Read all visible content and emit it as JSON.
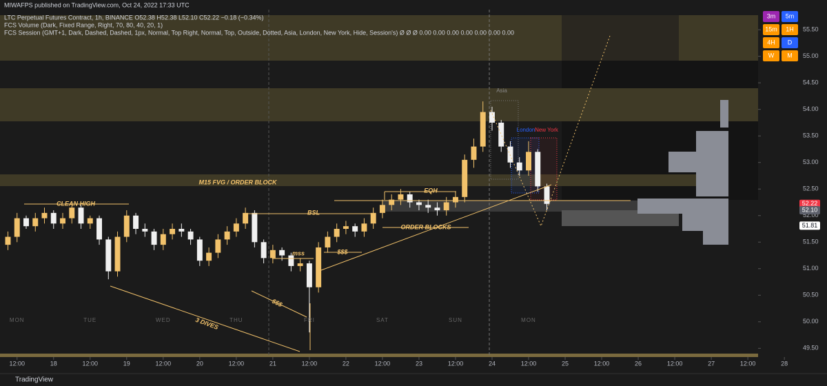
{
  "header": {
    "publisher": "MIWAFPS published on TradingView.com, Oct 24, 2022 17:33 UTC",
    "symbol_line": "LTC Perpetual Futures Contract, 1h, BINANCE  O52.38 H52.38 L52.10 C52.22 −0.18 (−0.34%)",
    "indicator_1": "FCS Volume (Dark, Fixed Range, Right, 70, 80, 40, 20, 1)",
    "indicator_2": "FCS Session (GMT+1, Dark, Dashed, Dashed, 1px, Normal, Top Right, Normal, Top, Outside, Dotted, Asia, London, New York, Hide, Session's)  Ø  Ø  Ø  0.00 0.00 0.00 0.00 0.00 0.00 0.00"
  },
  "timeframes": [
    "3m",
    "5m",
    "15m",
    "1H",
    "4H",
    "D",
    "W",
    "M"
  ],
  "footer": "TradingView",
  "chart_data": {
    "type": "candlestick",
    "up_color": "#f2c26b",
    "down_color": "#f0f0f0",
    "x": [
      -15,
      -12,
      -9,
      -6,
      -3,
      0,
      3,
      6,
      9,
      12,
      15,
      18,
      21,
      24,
      27,
      30,
      33,
      36,
      39,
      42,
      45,
      48,
      51,
      54,
      57,
      60,
      63,
      66,
      69,
      72,
      75,
      78,
      81,
      84,
      87,
      90,
      93,
      96,
      99,
      102,
      105,
      108,
      111,
      114,
      117,
      120,
      123,
      126,
      129,
      132,
      135,
      138,
      141,
      144,
      147,
      150,
      153,
      156,
      159,
      162
    ],
    "open": [
      51.45,
      51.6,
      51.95,
      51.8,
      51.95,
      52.05,
      51.85,
      51.95,
      52.15,
      51.85,
      51.95,
      51.55,
      50.95,
      51.6,
      52.0,
      51.75,
      51.7,
      51.45,
      51.65,
      51.75,
      51.7,
      51.55,
      51.15,
      51.3,
      51.55,
      51.7,
      51.85,
      52.05,
      51.5,
      51.2,
      51.35,
      51.25,
      51.05,
      51.1,
      50.65,
      51.4,
      51.6,
      51.75,
      51.8,
      51.7,
      51.85,
      52.05,
      52.2,
      52.3,
      52.4,
      52.25,
      52.2,
      52.15,
      52.1,
      52.25,
      52.35,
      53.05,
      53.3,
      53.95,
      53.75,
      53.3,
      53.0,
      52.85,
      53.2,
      52.55
    ],
    "high": [
      51.7,
      52.05,
      52.0,
      52.05,
      52.15,
      52.1,
      52.05,
      52.25,
      52.2,
      52.0,
      52.0,
      51.6,
      51.7,
      52.1,
      52.05,
      51.85,
      51.75,
      51.75,
      51.85,
      51.85,
      51.75,
      51.6,
      51.4,
      51.65,
      51.8,
      51.95,
      52.15,
      52.1,
      51.55,
      51.45,
      51.4,
      51.3,
      51.2,
      51.15,
      51.5,
      51.7,
      51.85,
      51.9,
      51.85,
      51.95,
      52.15,
      52.3,
      52.4,
      52.5,
      52.45,
      52.3,
      52.3,
      52.25,
      52.35,
      52.45,
      53.15,
      53.45,
      54.15,
      54.05,
      53.8,
      53.4,
      53.1,
      53.4,
      53.25,
      52.6
    ],
    "low": [
      51.35,
      51.5,
      51.75,
      51.7,
      51.85,
      51.75,
      51.75,
      51.85,
      51.75,
      51.75,
      51.45,
      50.8,
      50.85,
      51.5,
      51.65,
      51.6,
      51.35,
      51.35,
      51.55,
      51.6,
      51.45,
      51.05,
      51.05,
      51.2,
      51.45,
      51.6,
      51.75,
      51.4,
      51.1,
      51.1,
      51.15,
      50.95,
      50.95,
      49.8,
      50.55,
      51.3,
      51.5,
      51.65,
      51.6,
      51.6,
      51.75,
      51.95,
      52.1,
      52.2,
      52.15,
      52.1,
      52.05,
      52.0,
      52.0,
      52.15,
      52.25,
      52.9,
      53.2,
      53.6,
      53.2,
      52.9,
      52.75,
      52.75,
      52.45,
      52.1
    ],
    "close": [
      51.6,
      51.95,
      51.8,
      51.95,
      52.05,
      51.85,
      51.95,
      52.15,
      51.85,
      51.95,
      51.55,
      50.95,
      51.6,
      52.0,
      51.75,
      51.7,
      51.45,
      51.65,
      51.75,
      51.7,
      51.55,
      51.15,
      51.3,
      51.55,
      51.7,
      51.85,
      52.05,
      51.5,
      51.2,
      51.35,
      51.25,
      51.05,
      51.1,
      50.65,
      51.4,
      51.6,
      51.75,
      51.8,
      51.7,
      51.85,
      52.05,
      52.2,
      52.3,
      52.4,
      52.25,
      52.2,
      52.15,
      52.1,
      52.25,
      52.35,
      53.05,
      53.3,
      53.95,
      53.75,
      53.3,
      53.0,
      52.85,
      53.2,
      52.55,
      52.22
    ],
    "xlim": [
      -17.6,
      254
    ],
    "xticks": [
      {
        "value": -12,
        "label": "12:00"
      },
      {
        "value": 0,
        "label": "18"
      },
      {
        "value": 12,
        "label": "12:00"
      },
      {
        "value": 24,
        "label": "19"
      },
      {
        "value": 36,
        "label": "12:00"
      },
      {
        "value": 48,
        "label": "20"
      },
      {
        "value": 60,
        "label": "12:00"
      },
      {
        "value": 72,
        "label": "21"
      },
      {
        "value": 84,
        "label": "12:00"
      },
      {
        "value": 96,
        "label": "22"
      },
      {
        "value": 108,
        "label": "12:00"
      },
      {
        "value": 120,
        "label": "23"
      },
      {
        "value": 132,
        "label": "12:00"
      },
      {
        "value": 144,
        "label": "24"
      },
      {
        "value": 156,
        "label": "12:00"
      },
      {
        "value": 168,
        "label": "25"
      },
      {
        "value": 180,
        "label": "12:00"
      },
      {
        "value": 192,
        "label": "26"
      },
      {
        "value": 204,
        "label": "12:00"
      },
      {
        "value": 216,
        "label": "27"
      },
      {
        "value": 228,
        "label": "12:00"
      },
      {
        "value": 240,
        "label": "28"
      }
    ],
    "day_labels": {
      "x": [
        -12,
        12,
        36,
        60,
        84,
        108,
        132,
        156
      ],
      "labels": [
        "MON",
        "TUE",
        "WED",
        "THU",
        "FRI",
        "SAT",
        "SUN",
        "MON"
      ]
    },
    "ylim": [
      49.05,
      56.06
    ],
    "yticks": [
      {
        "value": 49.5,
        "label": "49.50"
      },
      {
        "value": 50,
        "label": "50.00"
      },
      {
        "value": 50.5,
        "label": "50.50"
      },
      {
        "value": 51,
        "label": "51.00"
      },
      {
        "value": 51.5,
        "label": "51.50"
      },
      {
        "value": 52,
        "label": "52.00"
      },
      {
        "value": 52.5,
        "label": "52.50"
      },
      {
        "value": 53,
        "label": "53.00"
      },
      {
        "value": 53.5,
        "label": "53.50"
      },
      {
        "value": 54,
        "label": "54.00"
      },
      {
        "value": 54.5,
        "label": "54.50"
      },
      {
        "value": 55,
        "label": "55.00"
      },
      {
        "value": 55.5,
        "label": "55.50"
      }
    ],
    "price_tags": [
      {
        "value": 52.22,
        "label": "52.22",
        "color": "#f23645"
      },
      {
        "value": 52.1,
        "label": "52.10",
        "color": "#5d606b"
      },
      {
        "value": 51.81,
        "label": "51.81",
        "color": "#ffffff"
      }
    ],
    "annotations": [
      "CLEAN HIGH",
      "M15 FVG / ORDER BLOCK",
      "EQH",
      "BSL",
      "ORDER BLOCKS",
      "mss",
      "$$$",
      "$$$",
      "3 DIVES",
      "Asia",
      "London",
      "New York"
    ]
  }
}
